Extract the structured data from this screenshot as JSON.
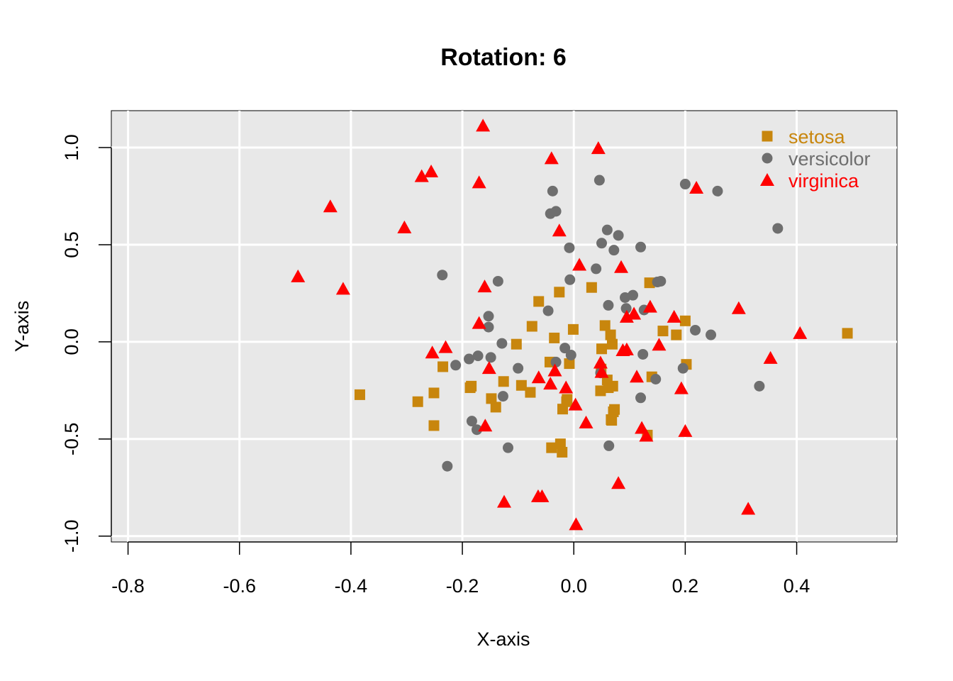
{
  "chart_data": {
    "type": "scatter",
    "title": "Rotation: 6",
    "xlabel": "X-axis",
    "ylabel": "Y-axis",
    "xlim": [
      -0.83,
      0.58
    ],
    "ylim": [
      -1.03,
      1.19
    ],
    "x_ticks": [
      -0.8,
      -0.6,
      -0.4,
      -0.2,
      0.0,
      0.2,
      0.4
    ],
    "x_tick_labels": [
      "-0.8",
      "-0.6",
      "-0.4",
      "-0.2",
      "0.0",
      "0.2",
      "0.4"
    ],
    "y_ticks": [
      -1.0,
      -0.5,
      0.0,
      0.5,
      1.0
    ],
    "y_tick_labels": [
      "-1.0",
      "-0.5",
      "0.0",
      "0.5",
      "1.0"
    ],
    "grid": true,
    "background_color": "#e8e8e8",
    "grid_color": "#ffffff",
    "legend_position": "top-right",
    "series": [
      {
        "name": "setosa",
        "marker": "square",
        "color": "#c8860d",
        "points": [
          [
            -0.384,
            -0.272
          ],
          [
            -0.28,
            -0.308
          ],
          [
            -0.251,
            -0.263
          ],
          [
            -0.251,
            -0.431
          ],
          [
            -0.235,
            -0.128
          ],
          [
            -0.186,
            -0.236
          ],
          [
            -0.184,
            -0.228
          ],
          [
            -0.148,
            -0.292
          ],
          [
            -0.14,
            -0.336
          ],
          [
            -0.126,
            -0.204
          ],
          [
            -0.103,
            -0.012
          ],
          [
            -0.094,
            -0.224
          ],
          [
            -0.078,
            -0.26
          ],
          [
            -0.075,
            0.08
          ],
          [
            -0.063,
            0.208
          ],
          [
            -0.043,
            -0.104
          ],
          [
            -0.04,
            -0.545
          ],
          [
            -0.035,
            0.02
          ],
          [
            -0.026,
            0.256
          ],
          [
            -0.024,
            -0.525
          ],
          [
            -0.02,
            -0.346
          ],
          [
            -0.021,
            -0.568
          ],
          [
            -0.013,
            -0.308
          ],
          [
            -0.012,
            -0.296
          ],
          [
            -0.008,
            -0.112
          ],
          [
            -0.001,
            0.064
          ],
          [
            0.032,
            0.28
          ],
          [
            0.048,
            -0.252
          ],
          [
            0.05,
            -0.036
          ],
          [
            0.049,
            -0.14
          ],
          [
            0.056,
            0.084
          ],
          [
            0.06,
            -0.196
          ],
          [
            0.062,
            -0.236
          ],
          [
            0.066,
            0.036
          ],
          [
            0.067,
            -0.4
          ],
          [
            0.068,
            -0.404
          ],
          [
            0.069,
            -0.012
          ],
          [
            0.07,
            -0.228
          ],
          [
            0.071,
            -0.36
          ],
          [
            0.073,
            -0.348
          ],
          [
            0.132,
            -0.48
          ],
          [
            0.136,
            0.304
          ],
          [
            0.14,
            -0.18
          ],
          [
            0.16,
            0.056
          ],
          [
            0.184,
            0.036
          ],
          [
            0.2,
            0.108
          ],
          [
            0.202,
            -0.116
          ],
          [
            0.491,
            0.044
          ]
        ]
      },
      {
        "name": "versicolor",
        "marker": "circle",
        "color": "#6e6e6e",
        "points": [
          [
            -0.236,
            0.344
          ],
          [
            -0.227,
            -0.64
          ],
          [
            -0.212,
            -0.12
          ],
          [
            -0.188,
            -0.088
          ],
          [
            -0.183,
            -0.408
          ],
          [
            -0.174,
            -0.452
          ],
          [
            -0.172,
            -0.072
          ],
          [
            -0.153,
            0.132
          ],
          [
            -0.153,
            0.076
          ],
          [
            -0.149,
            -0.08
          ],
          [
            -0.136,
            0.312
          ],
          [
            -0.129,
            -0.008
          ],
          [
            -0.127,
            -0.28
          ],
          [
            -0.118,
            -0.545
          ],
          [
            -0.1,
            -0.136
          ],
          [
            -0.046,
            0.16
          ],
          [
            -0.042,
            0.66
          ],
          [
            -0.038,
            0.776
          ],
          [
            -0.032,
            0.672
          ],
          [
            -0.032,
            -0.104
          ],
          [
            -0.016,
            -0.032
          ],
          [
            -0.008,
            0.484
          ],
          [
            -0.007,
            0.32
          ],
          [
            -0.005,
            -0.068
          ],
          [
            0.04,
            0.376
          ],
          [
            0.046,
            0.832
          ],
          [
            0.05,
            0.508
          ],
          [
            0.048,
            -0.16
          ],
          [
            0.06,
            0.576
          ],
          [
            0.062,
            0.188
          ],
          [
            0.063,
            -0.535
          ],
          [
            0.072,
            0.472
          ],
          [
            0.08,
            0.548
          ],
          [
            0.092,
            0.228
          ],
          [
            0.094,
            0.172
          ],
          [
            0.106,
            0.24
          ],
          [
            0.12,
            0.488
          ],
          [
            0.12,
            -0.288
          ],
          [
            0.124,
            -0.064
          ],
          [
            0.126,
            0.164
          ],
          [
            0.147,
            -0.192
          ],
          [
            0.15,
            0.308
          ],
          [
            0.156,
            0.312
          ],
          [
            0.196,
            -0.136
          ],
          [
            0.2,
            0.812
          ],
          [
            0.218,
            0.06
          ],
          [
            0.246,
            0.036
          ],
          [
            0.258,
            0.776
          ],
          [
            0.333,
            -0.228
          ],
          [
            0.366,
            0.584
          ]
        ]
      },
      {
        "name": "virginica",
        "marker": "triangle",
        "color": "#ff0000",
        "points": [
          [
            -0.495,
            0.336
          ],
          [
            -0.437,
            0.696
          ],
          [
            -0.414,
            0.272
          ],
          [
            -0.304,
            0.588
          ],
          [
            -0.273,
            0.852
          ],
          [
            -0.256,
            0.876
          ],
          [
            -0.254,
            -0.056
          ],
          [
            -0.23,
            -0.028
          ],
          [
            -0.17,
            0.096
          ],
          [
            -0.17,
            0.82
          ],
          [
            -0.163,
            1.112
          ],
          [
            -0.16,
            0.284
          ],
          [
            -0.159,
            -0.432
          ],
          [
            -0.152,
            -0.136
          ],
          [
            -0.125,
            -0.824
          ],
          [
            -0.064,
            -0.796
          ],
          [
            -0.063,
            -0.184
          ],
          [
            -0.057,
            -0.796
          ],
          [
            -0.042,
            -0.216
          ],
          [
            -0.04,
            0.944
          ],
          [
            -0.034,
            -0.148
          ],
          [
            -0.026,
            0.572
          ],
          [
            -0.014,
            -0.236
          ],
          [
            0.003,
            -0.324
          ],
          [
            0.004,
            -0.94
          ],
          [
            0.01,
            0.396
          ],
          [
            0.022,
            -0.416
          ],
          [
            0.044,
            0.996
          ],
          [
            0.048,
            -0.108
          ],
          [
            0.05,
            -0.156
          ],
          [
            0.08,
            -0.728
          ],
          [
            0.085,
            0.384
          ],
          [
            0.088,
            -0.044
          ],
          [
            0.095,
            -0.04
          ],
          [
            0.095,
            0.128
          ],
          [
            0.108,
            0.144
          ],
          [
            0.113,
            -0.18
          ],
          [
            0.122,
            -0.444
          ],
          [
            0.13,
            -0.484
          ],
          [
            0.137,
            0.18
          ],
          [
            0.153,
            -0.016
          ],
          [
            0.18,
            0.128
          ],
          [
            0.193,
            -0.24
          ],
          [
            0.2,
            -0.46
          ],
          [
            0.22,
            0.792
          ],
          [
            0.296,
            0.172
          ],
          [
            0.313,
            -0.86
          ],
          [
            0.353,
            -0.084
          ],
          [
            0.406,
            0.044
          ]
        ]
      }
    ]
  }
}
